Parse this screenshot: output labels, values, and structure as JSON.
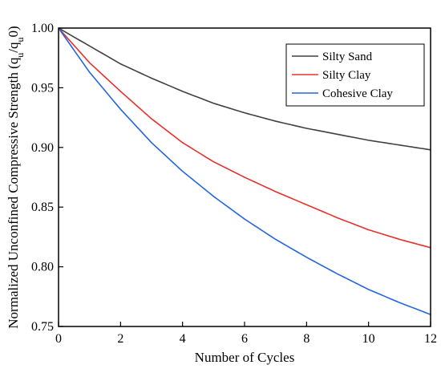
{
  "chart_data": {
    "type": "line",
    "xlabel": "Number of Cycles",
    "ylabel": {
      "parts": [
        {
          "text": "Normalized Unconfined Compressive Strength (q"
        },
        {
          "text": "u",
          "sub": true
        },
        {
          "text": "/q"
        },
        {
          "text": "u",
          "sub": true
        },
        {
          "text": "0)"
        }
      ]
    },
    "xlim": [
      0,
      12
    ],
    "ylim": [
      0.75,
      1.0
    ],
    "xticks": [
      0,
      2,
      4,
      6,
      8,
      10,
      12
    ],
    "xtick_labels": [
      "0",
      "2",
      "4",
      "6",
      "8",
      "10",
      "12"
    ],
    "yticks": [
      0.75,
      0.8,
      0.85,
      0.9,
      0.95,
      1.0
    ],
    "ytick_labels": [
      "0.75",
      "0.80",
      "0.85",
      "0.90",
      "0.95",
      "1.00"
    ],
    "grid": false,
    "legend_position": "top-right",
    "x": [
      0,
      1,
      2,
      3,
      4,
      5,
      6,
      7,
      8,
      9,
      10,
      11,
      12
    ],
    "series": [
      {
        "name": "Silty Sand",
        "color": "#404040",
        "values": [
          1.0,
          0.985,
          0.97,
          0.958,
          0.947,
          0.937,
          0.929,
          0.922,
          0.916,
          0.911,
          0.906,
          0.902,
          0.898
        ]
      },
      {
        "name": "Silty Clay",
        "color": "#e8302a",
        "values": [
          1.0,
          0.971,
          0.947,
          0.924,
          0.904,
          0.888,
          0.875,
          0.863,
          0.852,
          0.841,
          0.831,
          0.823,
          0.816
        ]
      },
      {
        "name": "Cohesive Clay",
        "color": "#2266dd",
        "values": [
          1.0,
          0.963,
          0.932,
          0.904,
          0.88,
          0.859,
          0.84,
          0.823,
          0.808,
          0.794,
          0.781,
          0.77,
          0.76
        ]
      }
    ]
  }
}
